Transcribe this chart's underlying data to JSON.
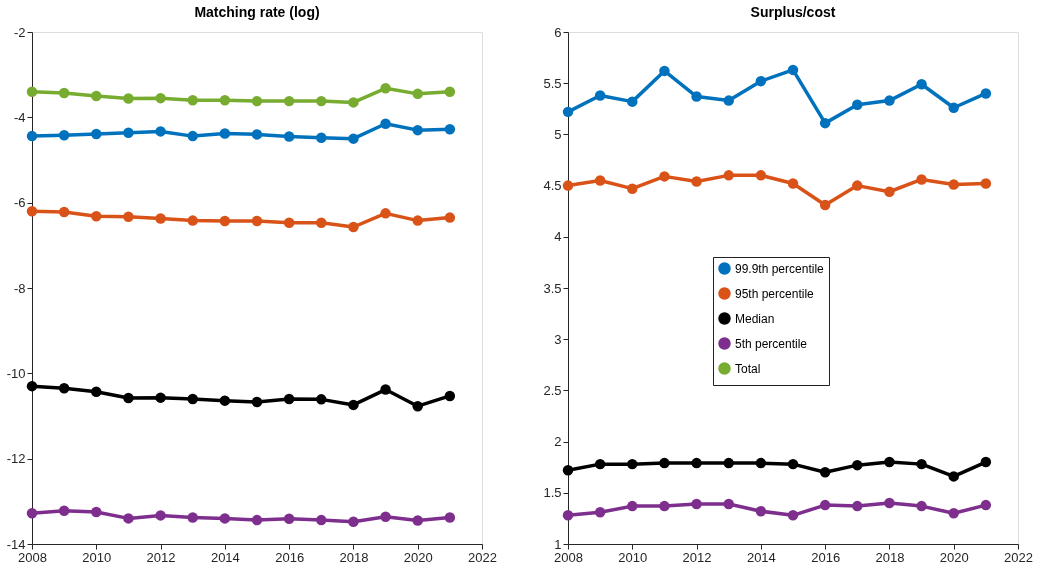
{
  "chart_data": [
    {
      "type": "line",
      "title": "Matching rate (log)",
      "x": [
        2008,
        2009,
        2010,
        2011,
        2012,
        2013,
        2014,
        2015,
        2016,
        2017,
        2018,
        2019,
        2020,
        2021
      ],
      "xlim": [
        2008,
        2022
      ],
      "xticks": [
        2008,
        2010,
        2012,
        2014,
        2016,
        2018,
        2020,
        2022
      ],
      "ylim": [
        -14,
        -2
      ],
      "yticks": [
        -14,
        -12,
        -10,
        -8,
        -6,
        -4,
        -2
      ],
      "grid": false,
      "legend": false,
      "marker": "circle",
      "line_style": "solid",
      "series": [
        {
          "color": "#0072bd",
          "values": [
            -4.44,
            -4.42,
            -4.39,
            -4.36,
            -4.33,
            -4.44,
            -4.38,
            -4.4,
            -4.45,
            -4.48,
            -4.5,
            -4.15,
            -4.3,
            -4.28
          ]
        },
        {
          "color": "#d95319",
          "values": [
            -6.2,
            -6.22,
            -6.32,
            -6.33,
            -6.37,
            -6.42,
            -6.43,
            -6.43,
            -6.47,
            -6.47,
            -6.57,
            -6.25,
            -6.42,
            -6.35
          ]
        },
        {
          "color": "#000000",
          "values": [
            -10.3,
            -10.35,
            -10.43,
            -10.58,
            -10.57,
            -10.6,
            -10.64,
            -10.67,
            -10.6,
            -10.61,
            -10.74,
            -10.38,
            -10.77,
            -10.53
          ]
        },
        {
          "color": "#7e2f8e",
          "values": [
            -13.28,
            -13.22,
            -13.25,
            -13.4,
            -13.33,
            -13.38,
            -13.4,
            -13.44,
            -13.41,
            -13.44,
            -13.48,
            -13.36,
            -13.45,
            -13.38
          ]
        },
        {
          "color": "#77ac30",
          "values": [
            -3.4,
            -3.43,
            -3.5,
            -3.56,
            -3.55,
            -3.6,
            -3.6,
            -3.62,
            -3.62,
            -3.62,
            -3.65,
            -3.32,
            -3.45,
            -3.4
          ]
        }
      ]
    },
    {
      "type": "line",
      "title": "Surplus/cost",
      "x": [
        2008,
        2009,
        2010,
        2011,
        2012,
        2013,
        2014,
        2015,
        2016,
        2017,
        2018,
        2019,
        2020,
        2021
      ],
      "xlim": [
        2008,
        2022
      ],
      "xticks": [
        2008,
        2010,
        2012,
        2014,
        2016,
        2018,
        2020,
        2022
      ],
      "ylim": [
        1,
        6
      ],
      "yticks": [
        1,
        1.5,
        2,
        2.5,
        3,
        3.5,
        4,
        4.5,
        5,
        5.5,
        6
      ],
      "grid": false,
      "legend": "center",
      "marker": "circle",
      "line_style": "solid",
      "series": [
        {
          "name": "99.9th percentile",
          "color": "#0072bd",
          "values": [
            5.22,
            5.38,
            5.32,
            5.62,
            5.37,
            5.33,
            5.52,
            5.63,
            5.11,
            5.29,
            5.33,
            5.49,
            5.26,
            5.4
          ]
        },
        {
          "name": "95th percentile",
          "color": "#d95319",
          "values": [
            4.5,
            4.55,
            4.47,
            4.59,
            4.54,
            4.6,
            4.6,
            4.52,
            4.31,
            4.5,
            4.44,
            4.56,
            4.51,
            4.52
          ]
        },
        {
          "name": "Median",
          "color": "#000000",
          "values": [
            1.72,
            1.78,
            1.78,
            1.79,
            1.79,
            1.79,
            1.79,
            1.78,
            1.7,
            1.77,
            1.8,
            1.78,
            1.66,
            1.8
          ]
        },
        {
          "name": "5th percentile",
          "color": "#7e2f8e",
          "values": [
            1.28,
            1.31,
            1.37,
            1.37,
            1.39,
            1.39,
            1.32,
            1.28,
            1.38,
            1.37,
            1.4,
            1.37,
            1.3,
            1.38
          ]
        },
        {
          "name": "Total",
          "color": "#77ac30",
          "values": [
            null,
            null,
            null,
            null,
            null,
            null,
            null,
            null,
            null,
            null,
            null,
            null,
            null,
            null
          ]
        }
      ]
    }
  ]
}
